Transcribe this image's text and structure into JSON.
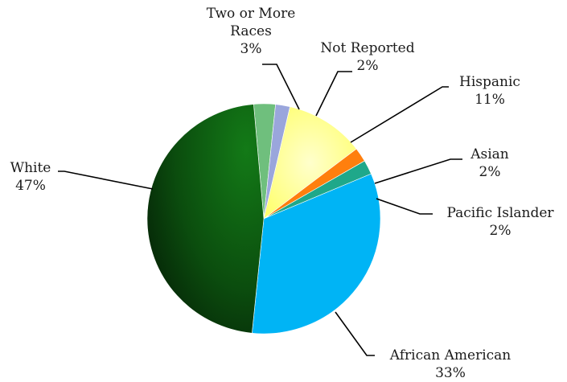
{
  "chart_data": {
    "type": "pie",
    "title": "",
    "unit": "%",
    "start_angle_deg": -5,
    "direction": "clockwise",
    "slices": [
      {
        "name": "Two or More Races",
        "value": 3,
        "label_lines": [
          "Two or More",
          "Races",
          "3%"
        ],
        "color": "#6fbf7d"
      },
      {
        "name": "Not Reported",
        "value": 2,
        "label_lines": [
          "Not Reported",
          "2%"
        ],
        "color": "#9aa6dc"
      },
      {
        "name": "Hispanic",
        "value": 11,
        "label_lines": [
          "Hispanic",
          "11%"
        ],
        "color": "#ffff99"
      },
      {
        "name": "Asian",
        "value": 2,
        "label_lines": [
          "Asian",
          "2%"
        ],
        "color": "#ff7f0e"
      },
      {
        "name": "Pacific Islander",
        "value": 2,
        "label_lines": [
          "Pacific Islander",
          "2%"
        ],
        "color": "#1fa88a"
      },
      {
        "name": "African American",
        "value": 33,
        "label_lines": [
          "African American",
          "33%"
        ],
        "color": "#00b4f5"
      },
      {
        "name": "White",
        "value": 47,
        "label_lines": [
          "White",
          "47%"
        ],
        "color": "#0f5f12"
      }
    ]
  }
}
